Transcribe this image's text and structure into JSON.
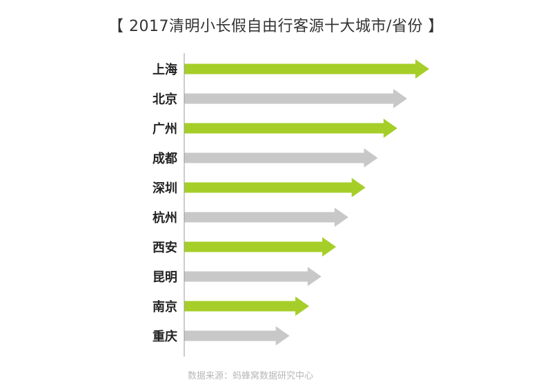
{
  "title": "【 2017清明小长假自由行客源十大城市/省份 】",
  "source": "数据来源：蚂蜂窝数据研究中心",
  "colors": {
    "green": "#a6ce28",
    "gray": "#c8c8c8",
    "axis": "#999999",
    "label": "#222222"
  },
  "chart_data": {
    "type": "bar",
    "orientation": "horizontal",
    "categories": [
      "上海",
      "北京",
      "广州",
      "成都",
      "深圳",
      "杭州",
      "西安",
      "昆明",
      "南京",
      "重庆"
    ],
    "values": [
      100,
      91,
      87,
      79,
      74,
      67,
      62,
      56,
      51,
      43
    ],
    "colors": [
      "green",
      "gray",
      "green",
      "gray",
      "green",
      "gray",
      "green",
      "gray",
      "green",
      "gray"
    ],
    "xlim": [
      0,
      100
    ],
    "grid": false,
    "legend": "none"
  }
}
